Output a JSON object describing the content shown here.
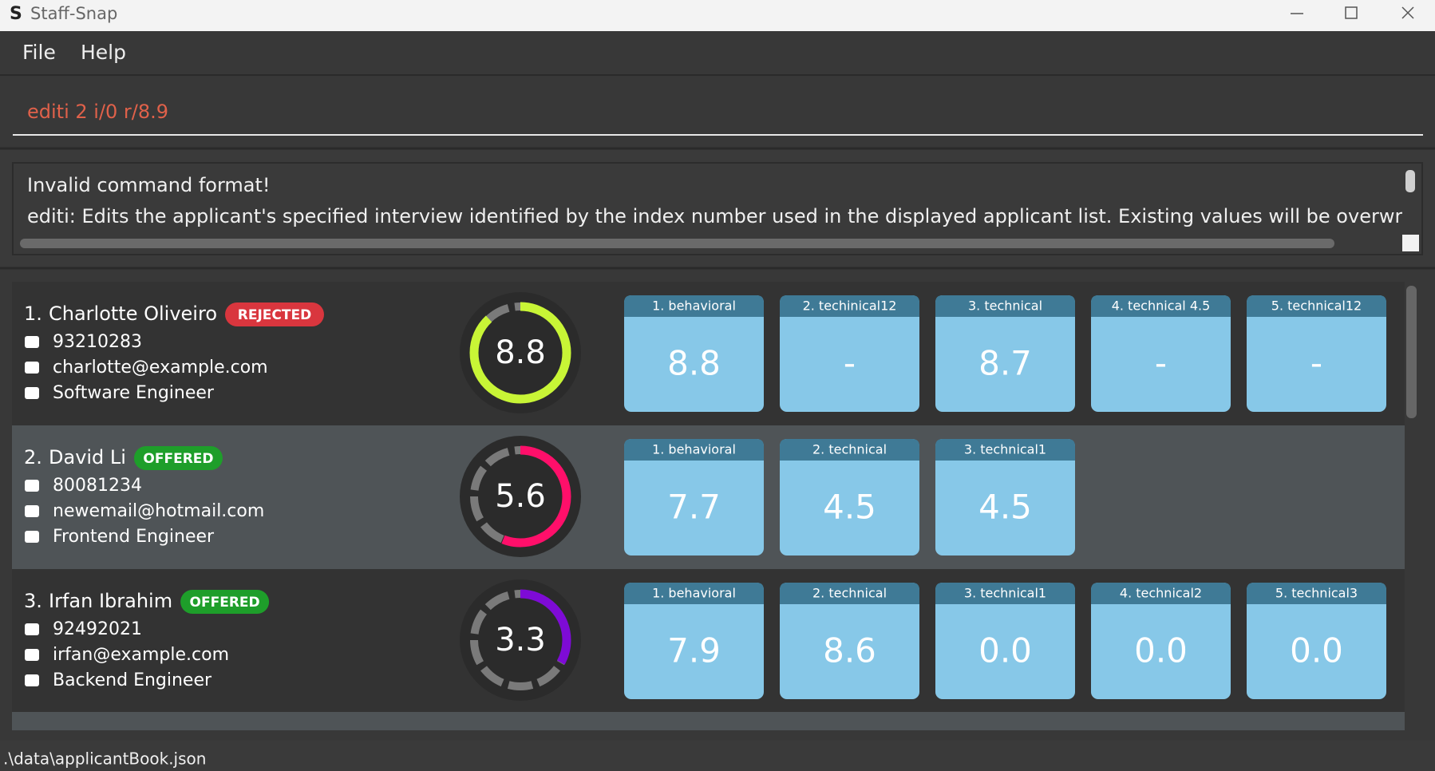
{
  "window": {
    "title": "Staff-Snap"
  },
  "menu": [
    "File",
    "Help"
  ],
  "command": "editi 2 i/0 r/8.9",
  "result": [
    "Invalid command format!",
    "editi: Edits the applicant's specified interview identified by the index number used in the displayed applicant list. Existing values will be overwritten by the input v"
  ],
  "applicants": [
    {
      "index": "1.",
      "name": "Charlotte Oliveiro",
      "status": "REJECTED",
      "status_color": "#d9363e",
      "phone": "93210283",
      "email": "charlotte@example.com",
      "position": "Software Engineer",
      "score": 8.8,
      "ring_color": "#c8f536",
      "interviews": [
        {
          "label": "1. behavioral",
          "rating": "8.8"
        },
        {
          "label": "2. techinical12",
          "rating": "-"
        },
        {
          "label": "3. technical",
          "rating": "8.7"
        },
        {
          "label": "4. technical 4.5",
          "rating": "-"
        },
        {
          "label": "5. technical12",
          "rating": "-"
        }
      ]
    },
    {
      "index": "2.",
      "name": "David Li",
      "status": "OFFERED",
      "status_color": "#1e9e2a",
      "phone": "80081234",
      "email": "newemail@hotmail.com",
      "position": "Frontend Engineer",
      "score": 5.6,
      "ring_color": "#ff0f6a",
      "interviews": [
        {
          "label": "1. behavioral",
          "rating": "7.7"
        },
        {
          "label": "2. technical",
          "rating": "4.5"
        },
        {
          "label": "3. technical1",
          "rating": "4.5"
        }
      ]
    },
    {
      "index": "3.",
      "name": "Irfan Ibrahim",
      "status": "OFFERED",
      "status_color": "#1e9e2a",
      "phone": "92492021",
      "email": "irfan@example.com",
      "position": "Backend Engineer",
      "score": 3.3,
      "ring_color": "#7e0bd6",
      "interviews": [
        {
          "label": "1. behavioral",
          "rating": "7.9"
        },
        {
          "label": "2. technical",
          "rating": "8.6"
        },
        {
          "label": "3. technical1",
          "rating": "0.0"
        },
        {
          "label": "4. technical2",
          "rating": "0.0"
        },
        {
          "label": "5. technical3",
          "rating": "0.0"
        }
      ]
    }
  ],
  "status_bar": ".\\data\\applicantBook.json"
}
